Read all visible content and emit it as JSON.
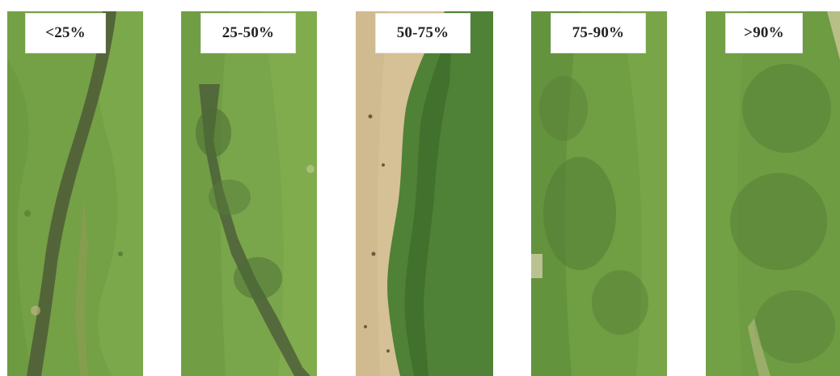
{
  "panels": [
    {
      "label": "<25%"
    },
    {
      "label": "25-50%"
    },
    {
      "label": "50-75%"
    },
    {
      "label": "75-90%"
    },
    {
      "label": ">90%"
    }
  ],
  "colors": {
    "grass_light": "#7ea84a",
    "grass_mid": "#5f8f3a",
    "grass_dark": "#3f6a2e",
    "soil": "#5a4a34",
    "bare_ground": "#d9c49a"
  }
}
